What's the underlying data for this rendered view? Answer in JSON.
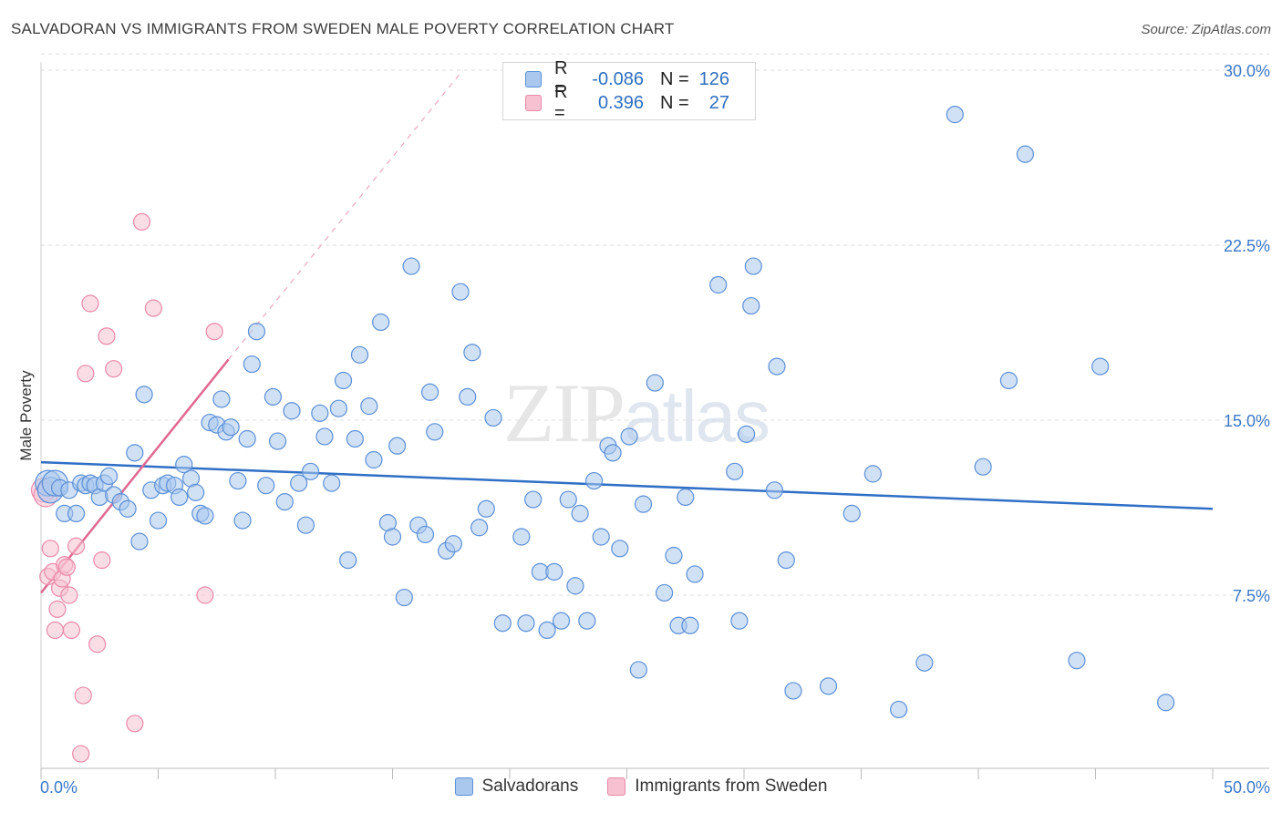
{
  "header": {
    "title": "SALVADORAN VS IMMIGRANTS FROM SWEDEN MALE POVERTY CORRELATION CHART",
    "source": "Source: ZipAtlas.com"
  },
  "watermark": {
    "zip": "ZIP",
    "atlas": "atlas"
  },
  "legend_top": {
    "rows": [
      {
        "r_label": "R =",
        "r_value": "-0.086",
        "n_label": "N =",
        "n_value": "126"
      },
      {
        "r_label": "R =",
        "r_value": "0.396",
        "n_label": "N =",
        "n_value": "27"
      }
    ]
  },
  "legend_bottom": {
    "items": [
      {
        "label": "Salvadorans"
      },
      {
        "label": "Immigrants from Sweden"
      }
    ]
  },
  "colors": {
    "blue_fill": "#aac8ee",
    "blue_stroke": "#5b8fd6",
    "blue_line": "#2f6fc6",
    "pink_fill": "#f7c1d1",
    "pink_stroke": "#e88aa8",
    "pink_line": "#e06890",
    "grid": "#dedede",
    "tick_label": "#3a78c8"
  },
  "chart_data": {
    "type": "scatter",
    "title": "SALVADORAN VS IMMIGRANTS FROM SWEDEN MALE POVERTY CORRELATION CHART",
    "xlabel": "",
    "ylabel": "Male Poverty",
    "xlim": [
      0,
      50
    ],
    "ylim": [
      0,
      31
    ],
    "x_tick_labels": [
      "0.0%",
      "50.0%"
    ],
    "y_ticks": [
      7.5,
      15.0,
      22.5,
      30.0
    ],
    "y_tick_labels": [
      "7.5%",
      "15.0%",
      "22.5%",
      "30.0%"
    ],
    "grid": true,
    "series": [
      {
        "name": "Salvadorans",
        "R": -0.086,
        "N": 126,
        "trend": {
          "x": [
            0,
            50
          ],
          "y": [
            13.2,
            11.2
          ]
        },
        "points": [
          [
            0.3,
            12.3
          ],
          [
            0.4,
            12.0
          ],
          [
            0.6,
            12.3
          ],
          [
            0.8,
            12.1
          ],
          [
            1.0,
            11.0
          ],
          [
            1.2,
            12.0
          ],
          [
            1.5,
            11.0
          ],
          [
            1.7,
            12.3
          ],
          [
            1.9,
            12.2
          ],
          [
            2.1,
            12.3
          ],
          [
            2.3,
            12.2
          ],
          [
            2.5,
            11.7
          ],
          [
            2.7,
            12.3
          ],
          [
            2.9,
            12.6
          ],
          [
            3.1,
            11.8
          ],
          [
            3.4,
            11.5
          ],
          [
            3.7,
            11.2
          ],
          [
            4.0,
            13.6
          ],
          [
            4.2,
            9.8
          ],
          [
            4.4,
            16.1
          ],
          [
            4.7,
            12.0
          ],
          [
            5.0,
            10.7
          ],
          [
            5.2,
            12.2
          ],
          [
            5.4,
            12.3
          ],
          [
            5.7,
            12.2
          ],
          [
            5.9,
            11.7
          ],
          [
            6.1,
            13.1
          ],
          [
            6.4,
            12.5
          ],
          [
            6.6,
            11.9
          ],
          [
            6.8,
            11.0
          ],
          [
            7.0,
            10.9
          ],
          [
            7.2,
            14.9
          ],
          [
            7.5,
            14.8
          ],
          [
            7.7,
            15.9
          ],
          [
            7.9,
            14.5
          ],
          [
            8.1,
            14.7
          ],
          [
            8.4,
            12.4
          ],
          [
            8.6,
            10.7
          ],
          [
            8.8,
            14.2
          ],
          [
            9.0,
            17.4
          ],
          [
            9.2,
            18.8
          ],
          [
            9.6,
            12.2
          ],
          [
            9.9,
            16.0
          ],
          [
            10.1,
            14.1
          ],
          [
            10.4,
            11.5
          ],
          [
            10.7,
            15.4
          ],
          [
            11.0,
            12.3
          ],
          [
            11.3,
            10.5
          ],
          [
            11.5,
            12.8
          ],
          [
            11.9,
            15.3
          ],
          [
            12.1,
            14.3
          ],
          [
            12.4,
            12.3
          ],
          [
            12.7,
            15.5
          ],
          [
            12.9,
            16.7
          ],
          [
            13.1,
            9.0
          ],
          [
            13.4,
            14.2
          ],
          [
            13.6,
            17.8
          ],
          [
            14.0,
            15.6
          ],
          [
            14.2,
            13.3
          ],
          [
            14.5,
            19.2
          ],
          [
            14.8,
            10.6
          ],
          [
            15.0,
            10.0
          ],
          [
            15.2,
            13.9
          ],
          [
            15.5,
            7.4
          ],
          [
            15.8,
            21.6
          ],
          [
            16.1,
            10.5
          ],
          [
            16.4,
            10.1
          ],
          [
            16.6,
            16.2
          ],
          [
            16.8,
            14.5
          ],
          [
            17.3,
            9.4
          ],
          [
            17.6,
            9.7
          ],
          [
            17.9,
            20.5
          ],
          [
            18.2,
            16.0
          ],
          [
            18.4,
            17.9
          ],
          [
            18.7,
            10.4
          ],
          [
            19.0,
            11.2
          ],
          [
            19.3,
            15.1
          ],
          [
            19.7,
            6.3
          ],
          [
            20.5,
            10.0
          ],
          [
            20.7,
            6.3
          ],
          [
            21.0,
            11.6
          ],
          [
            21.3,
            8.5
          ],
          [
            21.6,
            6.0
          ],
          [
            21.9,
            8.5
          ],
          [
            22.2,
            6.4
          ],
          [
            22.5,
            11.6
          ],
          [
            22.8,
            7.9
          ],
          [
            23.0,
            11.0
          ],
          [
            23.3,
            6.4
          ],
          [
            23.6,
            12.4
          ],
          [
            23.9,
            10.0
          ],
          [
            24.2,
            13.9
          ],
          [
            24.4,
            13.6
          ],
          [
            24.7,
            9.5
          ],
          [
            25.1,
            14.3
          ],
          [
            25.5,
            4.3
          ],
          [
            25.7,
            11.4
          ],
          [
            26.2,
            16.6
          ],
          [
            26.6,
            7.6
          ],
          [
            27.0,
            9.2
          ],
          [
            27.2,
            6.2
          ],
          [
            27.5,
            11.7
          ],
          [
            27.7,
            6.2
          ],
          [
            27.9,
            8.4
          ],
          [
            28.9,
            20.8
          ],
          [
            29.6,
            12.8
          ],
          [
            29.8,
            6.4
          ],
          [
            30.1,
            14.4
          ],
          [
            30.3,
            19.9
          ],
          [
            30.4,
            21.6
          ],
          [
            31.3,
            12.0
          ],
          [
            31.4,
            17.3
          ],
          [
            31.8,
            9.0
          ],
          [
            32.1,
            3.4
          ],
          [
            33.6,
            3.6
          ],
          [
            34.6,
            11.0
          ],
          [
            35.5,
            12.7
          ],
          [
            36.6,
            2.6
          ],
          [
            37.7,
            4.6
          ],
          [
            39.0,
            28.1
          ],
          [
            40.2,
            13.0
          ],
          [
            41.3,
            16.7
          ],
          [
            42.0,
            26.4
          ],
          [
            44.2,
            4.7
          ],
          [
            45.2,
            17.3
          ],
          [
            48.0,
            2.9
          ]
        ]
      },
      {
        "name": "Immigrants from Sweden",
        "R": 0.396,
        "N": 27,
        "trend": {
          "x": [
            0,
            8.0
          ],
          "y": [
            7.6,
            17.6
          ],
          "dashed_extension_to": [
            18.0,
            30.0
          ]
        },
        "points": [
          [
            0.1,
            12.0
          ],
          [
            0.2,
            11.8
          ],
          [
            0.3,
            8.3
          ],
          [
            0.4,
            9.5
          ],
          [
            0.5,
            8.5
          ],
          [
            0.6,
            6.0
          ],
          [
            0.7,
            6.9
          ],
          [
            0.8,
            7.8
          ],
          [
            0.9,
            8.2
          ],
          [
            1.0,
            8.8
          ],
          [
            1.1,
            8.7
          ],
          [
            1.2,
            7.5
          ],
          [
            1.3,
            6.0
          ],
          [
            1.5,
            9.6
          ],
          [
            1.7,
            0.7
          ],
          [
            1.8,
            3.2
          ],
          [
            1.9,
            17.0
          ],
          [
            2.1,
            20.0
          ],
          [
            2.4,
            5.4
          ],
          [
            2.6,
            9.0
          ],
          [
            2.8,
            18.6
          ],
          [
            3.1,
            17.2
          ],
          [
            4.0,
            2.0
          ],
          [
            4.3,
            23.5
          ],
          [
            4.8,
            19.8
          ],
          [
            7.0,
            7.5
          ],
          [
            7.4,
            18.8
          ]
        ]
      }
    ]
  }
}
